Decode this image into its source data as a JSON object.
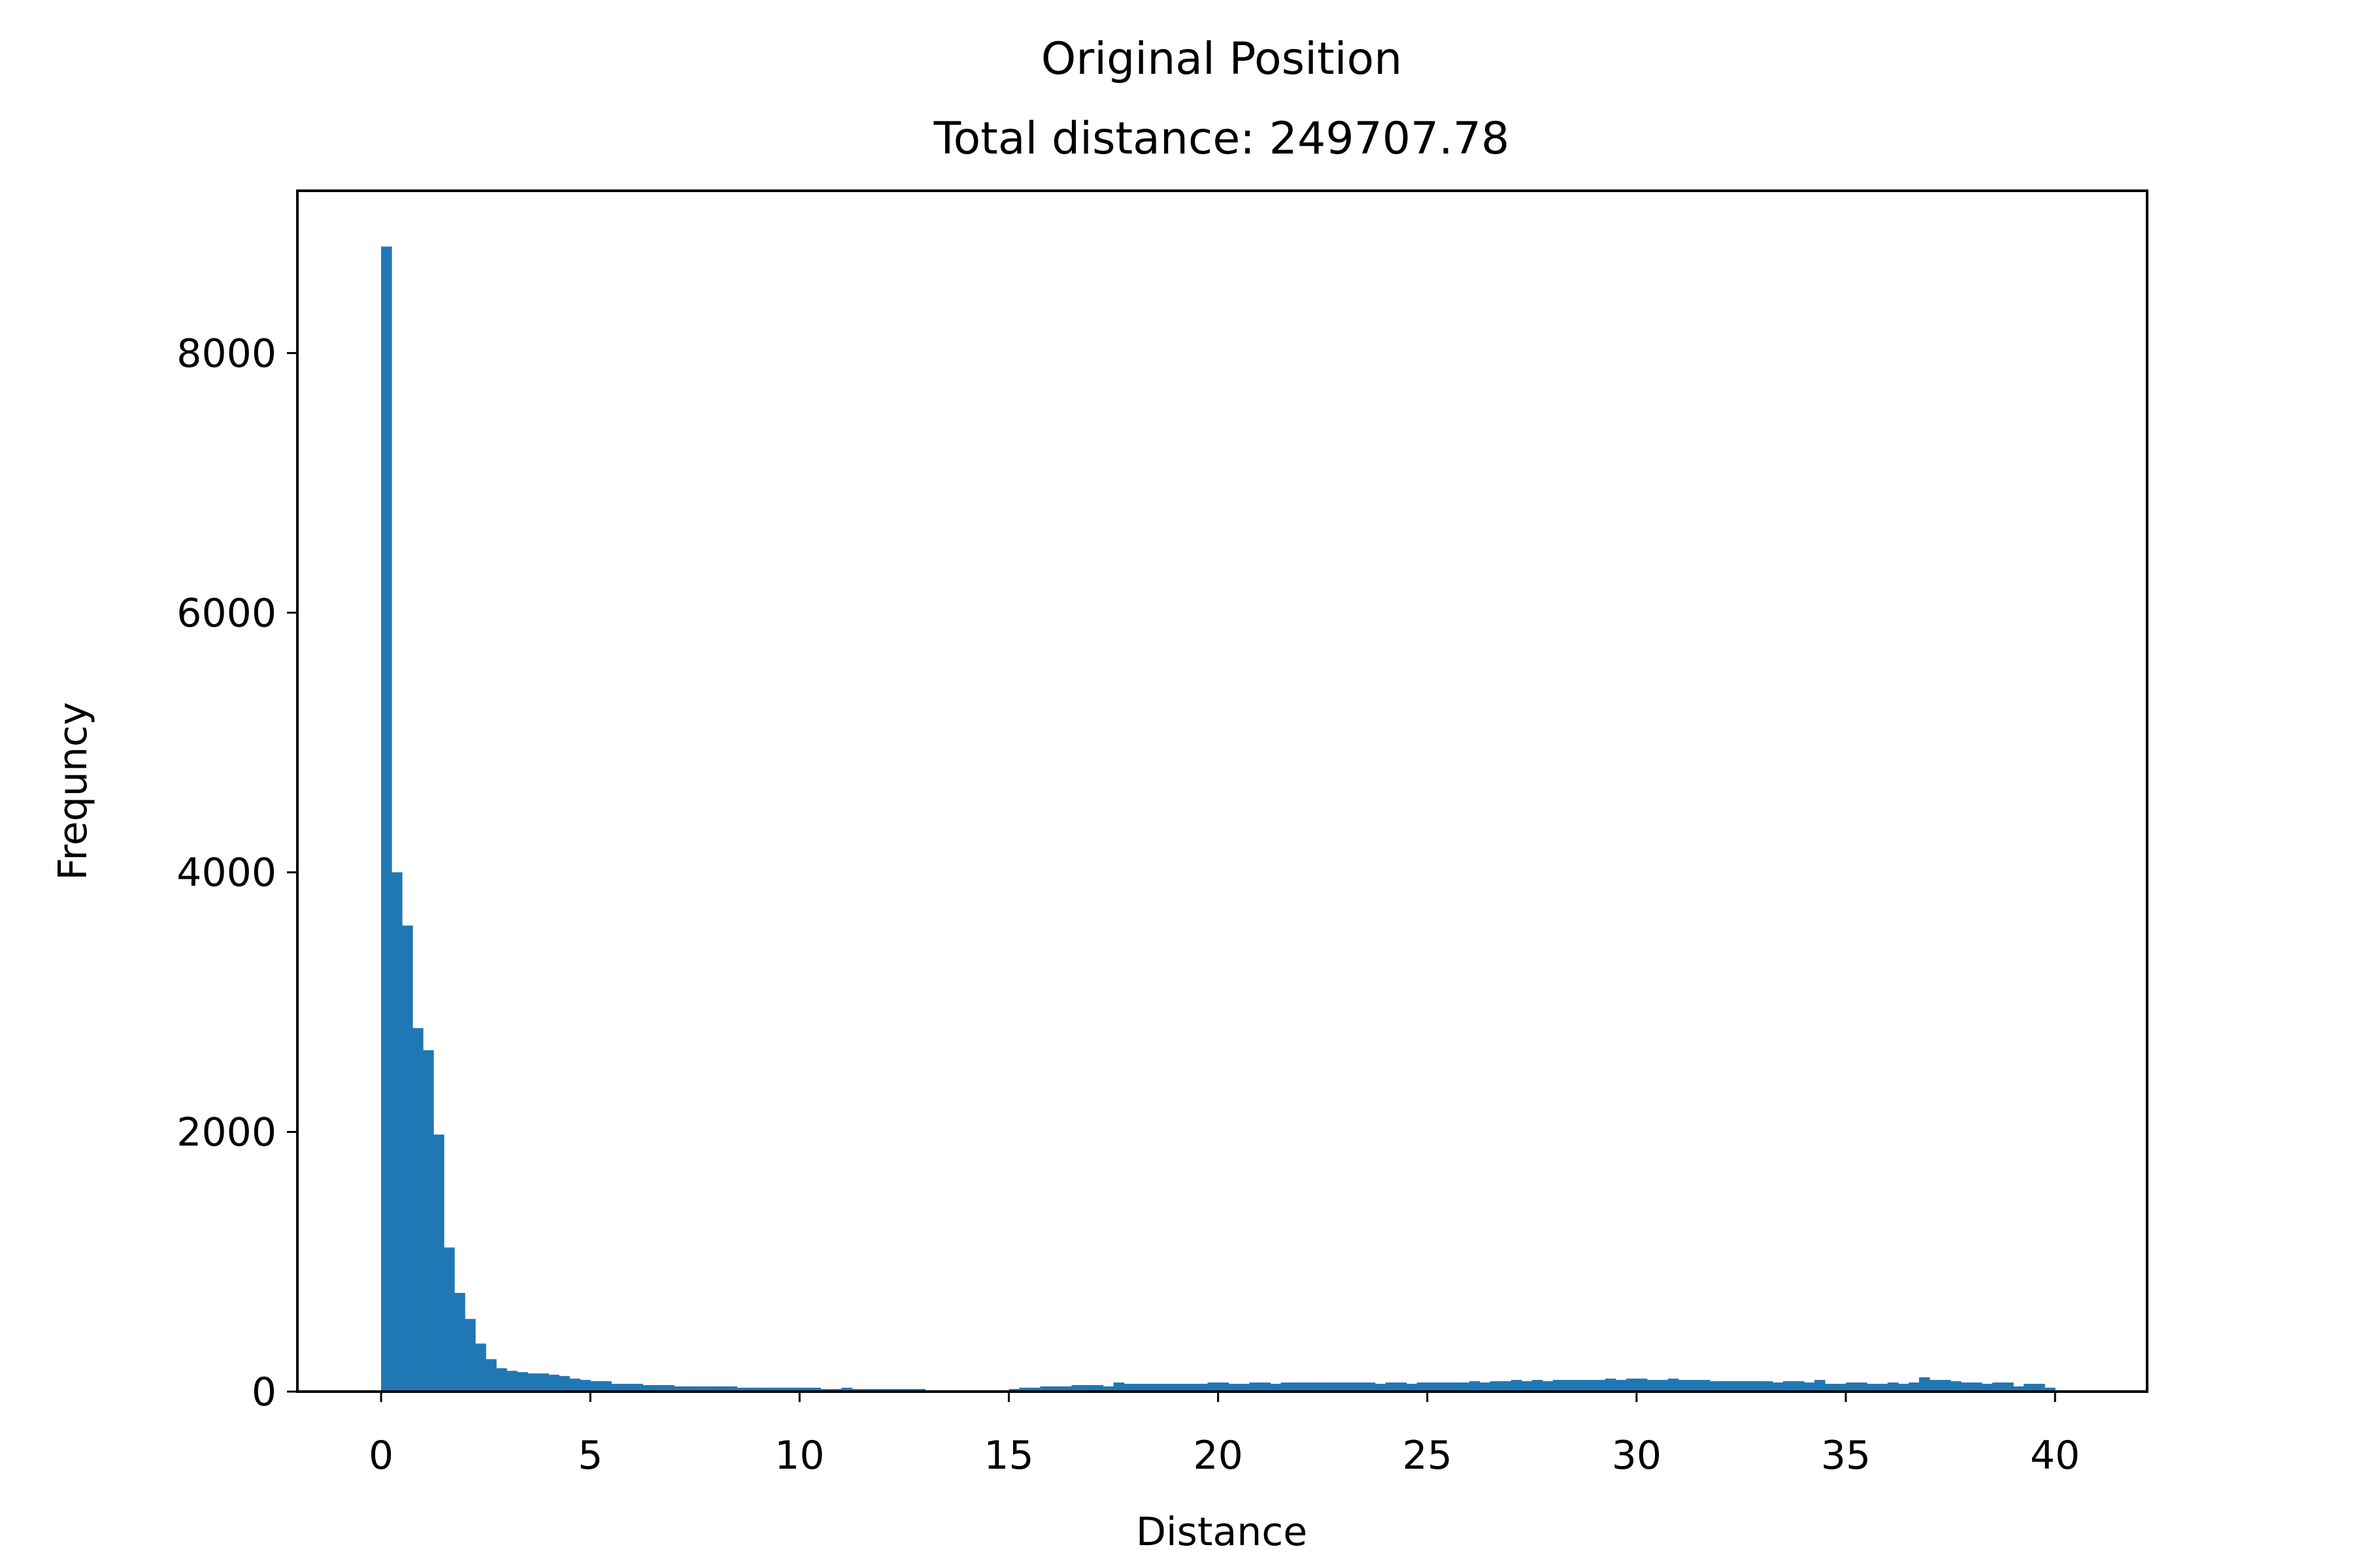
{
  "chart_data": {
    "type": "bar",
    "title": "Original Position",
    "subtitle": "Total distance: 249707.78",
    "xlabel": "Distance",
    "ylabel": "Frequncy",
    "xlim": [
      -2,
      42.2
    ],
    "ylim": [
      0,
      9250
    ],
    "xticks": [
      0,
      5,
      10,
      15,
      20,
      25,
      30,
      35,
      40
    ],
    "yticks": [
      0,
      2000,
      4000,
      6000,
      8000
    ],
    "xtick_labels": [
      "0",
      "5",
      "10",
      "15",
      "20",
      "25",
      "30",
      "35",
      "40"
    ],
    "ytick_labels": [
      "0",
      "2000",
      "4000",
      "6000",
      "8000"
    ],
    "grid": false,
    "bar_color": "#1f77b4",
    "bin_start": 0,
    "bin_width": 0.25,
    "values": [
      8820,
      4000,
      3590,
      2800,
      2630,
      1980,
      1110,
      760,
      560,
      370,
      250,
      180,
      160,
      150,
      140,
      140,
      130,
      120,
      100,
      90,
      80,
      80,
      60,
      60,
      60,
      50,
      50,
      50,
      40,
      40,
      40,
      40,
      40,
      40,
      30,
      30,
      30,
      30,
      30,
      30,
      30,
      30,
      20,
      20,
      30,
      20,
      20,
      20,
      20,
      20,
      20,
      20,
      10,
      10,
      10,
      10,
      10,
      0,
      0,
      10,
      20,
      30,
      30,
      40,
      40,
      40,
      50,
      50,
      50,
      40,
      70,
      60,
      60,
      60,
      60,
      60,
      60,
      60,
      60,
      70,
      70,
      60,
      60,
      70,
      70,
      60,
      70,
      70,
      70,
      70,
      70,
      70,
      70,
      70,
      70,
      60,
      70,
      70,
      60,
      70,
      70,
      70,
      70,
      70,
      80,
      70,
      80,
      80,
      90,
      80,
      90,
      80,
      90,
      90,
      90,
      90,
      90,
      100,
      90,
      100,
      100,
      90,
      90,
      100,
      90,
      90,
      90,
      80,
      80,
      80,
      80,
      80,
      80,
      70,
      80,
      80,
      70,
      90,
      60,
      60,
      70,
      70,
      60,
      60,
      70,
      60,
      70,
      110,
      90,
      90,
      80,
      70,
      70,
      60,
      70,
      70,
      40,
      60,
      60,
      30
    ]
  }
}
